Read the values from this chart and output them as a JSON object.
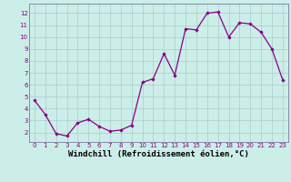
{
  "x": [
    0,
    1,
    2,
    3,
    4,
    5,
    6,
    7,
    8,
    9,
    10,
    11,
    12,
    13,
    14,
    15,
    16,
    17,
    18,
    19,
    20,
    21,
    22,
    23
  ],
  "y": [
    4.7,
    3.5,
    1.9,
    1.7,
    2.8,
    3.1,
    2.5,
    2.1,
    2.2,
    2.6,
    6.2,
    6.5,
    8.6,
    6.8,
    10.7,
    10.6,
    12.0,
    12.1,
    10.0,
    11.2,
    11.1,
    10.4,
    9.0,
    6.4
  ],
  "line_color": "#880088",
  "marker": "D",
  "marker_size": 1.8,
  "line_width": 0.9,
  "bg_color": "#cceee8",
  "grid_color": "#aacccc",
  "xlabel": "Windchill (Refroidissement éolien,°C)",
  "xlim": [
    -0.5,
    23.5
  ],
  "ylim": [
    1.2,
    12.8
  ],
  "yticks": [
    2,
    3,
    4,
    5,
    6,
    7,
    8,
    9,
    10,
    11,
    12
  ],
  "xticks": [
    0,
    1,
    2,
    3,
    4,
    5,
    6,
    7,
    8,
    9,
    10,
    11,
    12,
    13,
    14,
    15,
    16,
    17,
    18,
    19,
    20,
    21,
    22,
    23
  ],
  "tick_fontsize": 5.0,
  "xlabel_fontsize": 6.5,
  "spine_color": "#8888aa"
}
